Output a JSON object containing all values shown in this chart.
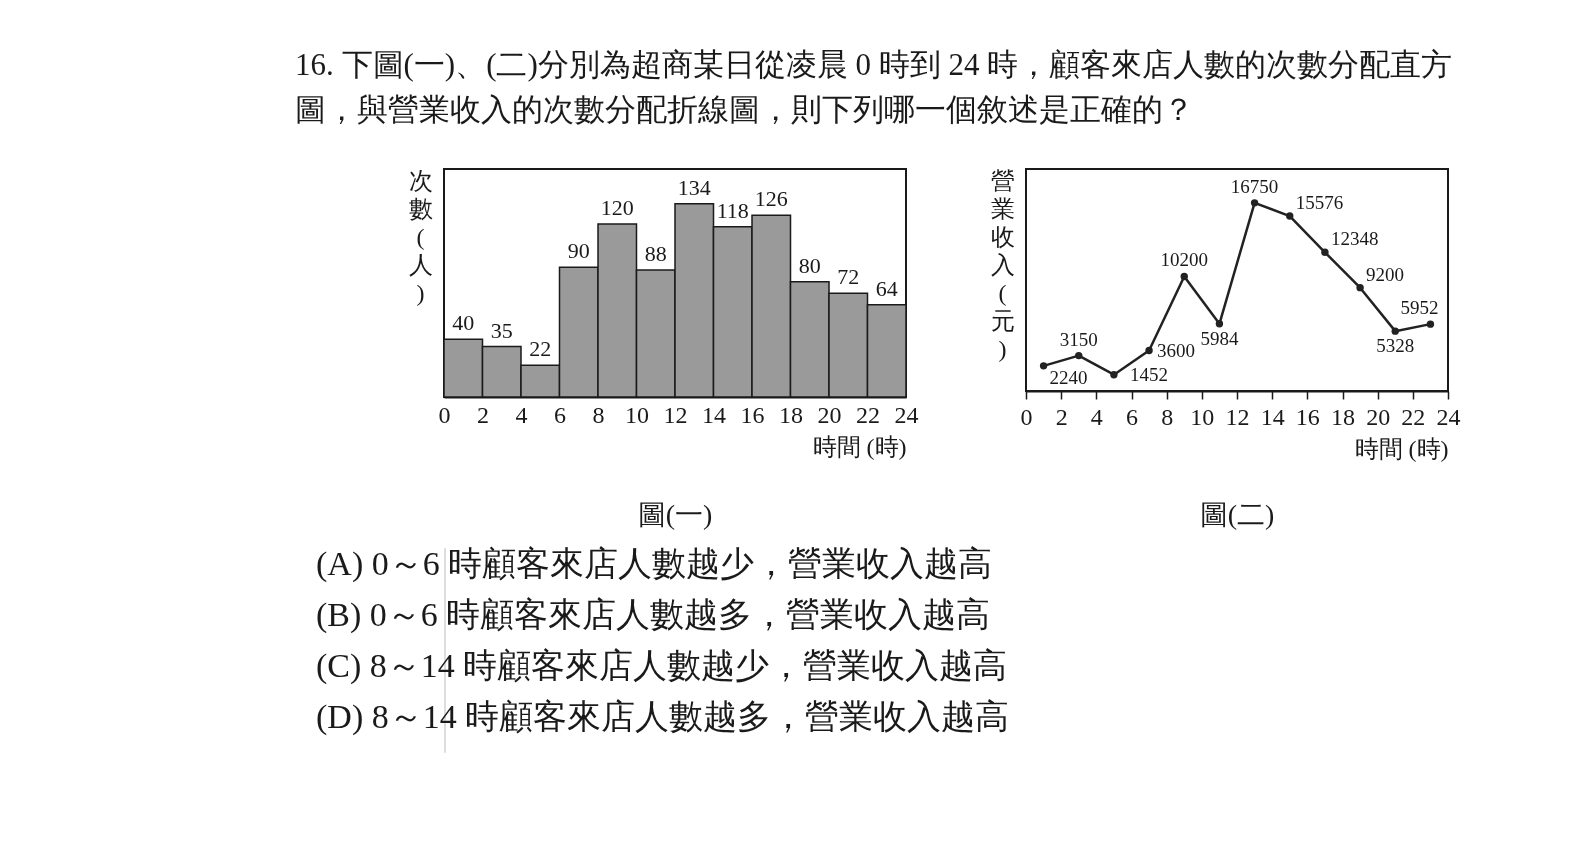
{
  "chart_data": [
    {
      "type": "bar",
      "title": "圖(一)",
      "subtitle": "16. 下圖(一)、(二)分別為超商某日從凌晨 0 時到 24 時，顧客來店人數的次數分配直方圖，與營業收入的次數分配折線圖，則下列哪一個敘述是正確的？",
      "xlabel": "時間 (時)",
      "ylabel": "次數(人)",
      "x": [
        1,
        3,
        5,
        7,
        9,
        11,
        13,
        15,
        17,
        19,
        21,
        23
      ],
      "values": [
        40,
        35,
        22,
        90,
        120,
        88,
        134,
        118,
        126,
        80,
        72,
        64
      ],
      "color": "#9a9a9a",
      "xlim": [
        0,
        24
      ],
      "xticks": [
        0,
        2,
        4,
        6,
        8,
        10,
        12,
        14,
        16,
        18,
        20,
        22,
        24
      ],
      "data_labels": true,
      "tick_labels": "x",
      "annotations": [
        "(A) 0～6 時顧客來店人數越少，營業收入越高",
        "(B) 0～6 時顧客來店人數越多，營業收入越高",
        "(C) 8～14 時顧客來店人數越少，營業收入越高",
        "(D) 8～14 時顧客來店人數越多，營業收入越高"
      ]
    },
    {
      "type": "line",
      "title": "圖(二)",
      "xlabel": "時間 (時)",
      "ylabel": "營業收入(元)",
      "x": [
        1,
        3,
        5,
        7,
        9,
        11,
        13,
        15,
        17,
        19,
        21,
        23
      ],
      "values": [
        2240,
        3150,
        1452,
        3600,
        10200,
        5984,
        16750,
        15576,
        12348,
        9200,
        5328,
        5952
      ],
      "color": "#222222",
      "marker": "circle",
      "xlim": [
        0,
        24
      ],
      "xticks": [
        0,
        2,
        4,
        6,
        8,
        10,
        12,
        14,
        16,
        18,
        20,
        22,
        24
      ],
      "data_labels": true,
      "tick_labels": "x"
    }
  ]
}
